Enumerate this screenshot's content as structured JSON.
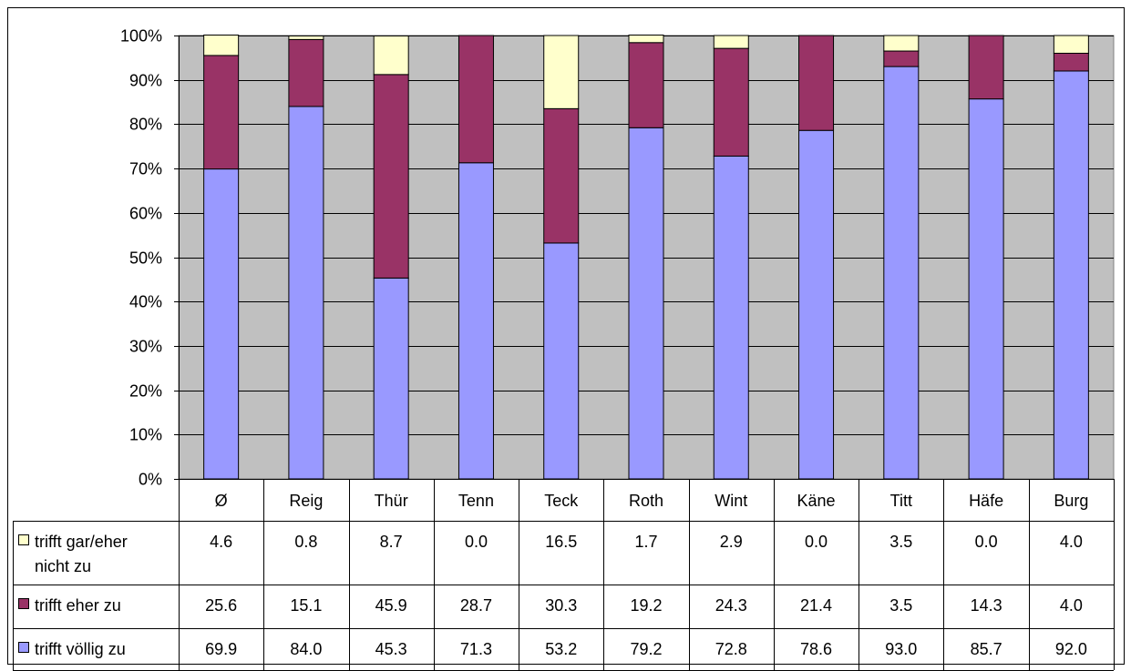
{
  "chart_data": {
    "type": "bar",
    "stacked": true,
    "percent_scale": true,
    "categories": [
      "Ø",
      "Reig",
      "Thür",
      "Tenn",
      "Teck",
      "Roth",
      "Wint",
      "Käne",
      "Titt",
      "Häfe",
      "Burg"
    ],
    "y_ticks": [
      "0%",
      "10%",
      "20%",
      "30%",
      "40%",
      "50%",
      "60%",
      "70%",
      "80%",
      "90%",
      "100%"
    ],
    "ylim": [
      0,
      100
    ],
    "grid": true,
    "legend_placement": "data-table-left",
    "series": [
      {
        "name": "trifft völlig zu",
        "color": "#9999FF",
        "values": [
          69.9,
          84.0,
          45.3,
          71.3,
          53.2,
          79.2,
          72.8,
          78.6,
          93.0,
          85.7,
          92.0
        ],
        "labels": [
          "69.9",
          "84.0",
          "45.3",
          "71.3",
          "53.2",
          "79.2",
          "72.8",
          "78.6",
          "93.0",
          "85.7",
          "92.0"
        ]
      },
      {
        "name": "trifft eher zu",
        "color": "#993366",
        "values": [
          25.6,
          15.1,
          45.9,
          28.7,
          30.3,
          19.2,
          24.3,
          21.4,
          3.5,
          14.3,
          4.0
        ],
        "labels": [
          "25.6",
          "15.1",
          "45.9",
          "28.7",
          "30.3",
          "19.2",
          "24.3",
          "21.4",
          "3.5",
          "14.3",
          "4.0"
        ]
      },
      {
        "name": "trifft gar/eher nicht zu",
        "name_lines": [
          "trifft gar/eher",
          "nicht zu"
        ],
        "color": "#FFFFCC",
        "values": [
          4.6,
          0.8,
          8.7,
          0.0,
          16.5,
          1.7,
          2.9,
          0.0,
          3.5,
          0.0,
          4.0
        ],
        "labels": [
          "4.6",
          "0.8",
          "8.7",
          "0.0",
          "16.5",
          "1.7",
          "2.9",
          "0.0",
          "3.5",
          "0.0",
          "4.0"
        ]
      }
    ],
    "plot_background": "#C0C0C0"
  }
}
